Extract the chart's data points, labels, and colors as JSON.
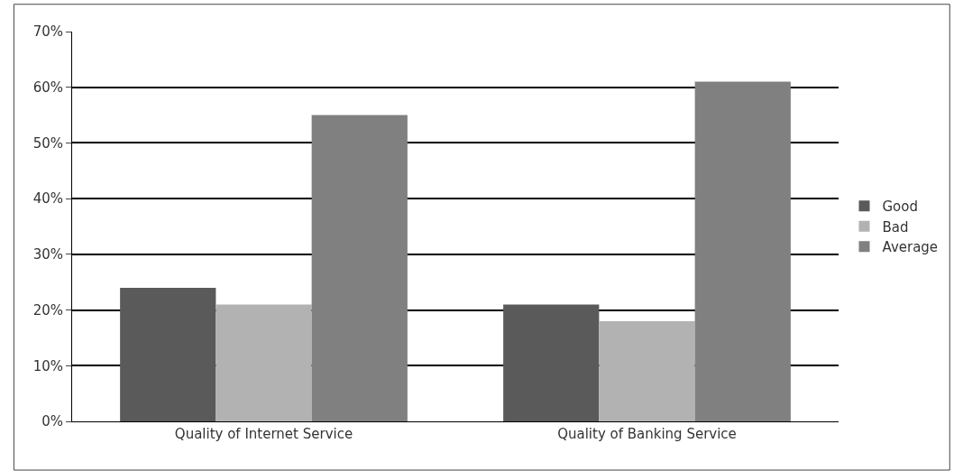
{
  "chart_data": {
    "type": "bar",
    "categories": [
      "Quality of Internet Service",
      "Quality of Banking Service"
    ],
    "series": [
      {
        "name": "Good",
        "color": "#5a5a5a",
        "values": [
          24,
          21
        ]
      },
      {
        "name": "Bad",
        "color": "#b2b2b2",
        "values": [
          21,
          18
        ]
      },
      {
        "name": "Average",
        "color": "#808080",
        "values": [
          55,
          61
        ]
      }
    ],
    "ylim": [
      0,
      70
    ],
    "yticks": [
      {
        "value": 0,
        "label": "0%"
      },
      {
        "value": 10,
        "label": "10%"
      },
      {
        "value": 20,
        "label": "20%"
      },
      {
        "value": 30,
        "label": "30%"
      },
      {
        "value": 40,
        "label": "40%"
      },
      {
        "value": 50,
        "label": "50%"
      },
      {
        "value": 60,
        "label": "60%"
      },
      {
        "value": 70,
        "label": "70%"
      }
    ],
    "grid": "y",
    "legend": "right"
  }
}
